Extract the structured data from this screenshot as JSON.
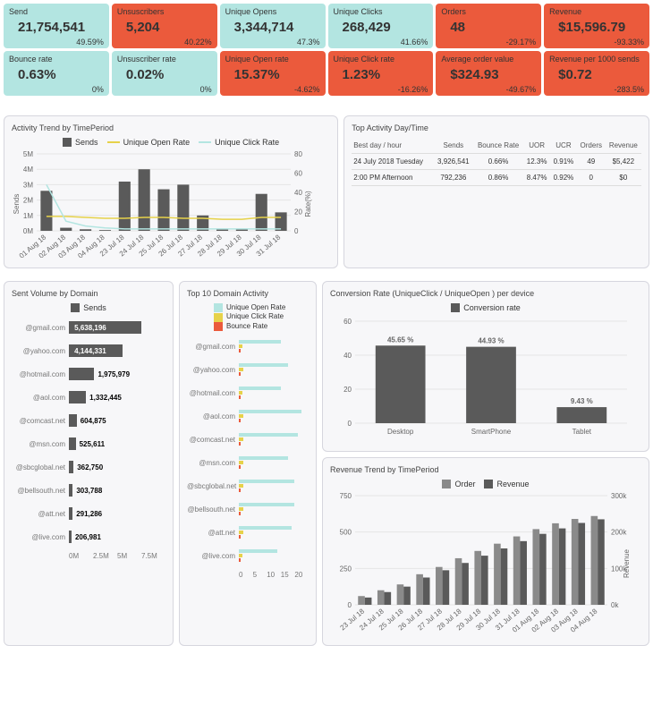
{
  "colors": {
    "teal": "#b3e5e1",
    "red": "#eb5a3c",
    "bar": "#5a5a5a",
    "bar2": "#8a8a8a",
    "open_rate": "#b3e5e1",
    "click_rate": "#e6d24a",
    "bounce_rate": "#eb5a3c",
    "grid": "#e5e5e5"
  },
  "kpis": [
    {
      "label": "Send",
      "value": "21,754,541",
      "delta": "49.59%",
      "tone": "teal"
    },
    {
      "label": "Unsuscribers",
      "value": "5,204",
      "delta": "40.22%",
      "tone": "red"
    },
    {
      "label": "Unique Opens",
      "value": "3,344,714",
      "delta": "47.3%",
      "tone": "teal"
    },
    {
      "label": "Unique Clicks",
      "value": "268,429",
      "delta": "41.66%",
      "tone": "teal"
    },
    {
      "label": "Orders",
      "value": "48",
      "delta": "-29.17%",
      "tone": "red"
    },
    {
      "label": "Revenue",
      "value": "$15,596.79",
      "delta": "-93.33%",
      "tone": "red"
    },
    {
      "label": "Bounce rate",
      "value": "0.63%",
      "delta": "0%",
      "tone": "teal"
    },
    {
      "label": "Unsuscriber rate",
      "value": "0.02%",
      "delta": "0%",
      "tone": "teal"
    },
    {
      "label": "Unique Open rate",
      "value": "15.37%",
      "delta": "-4.62%",
      "tone": "red"
    },
    {
      "label": "Unique Click rate",
      "value": "1.23%",
      "delta": "-16.26%",
      "tone": "red"
    },
    {
      "label": "Average order value",
      "value": "$324.93",
      "delta": "-49.67%",
      "tone": "red"
    },
    {
      "label": "Revenue per 1000 sends",
      "value": "$0.72",
      "delta": "-283.5%",
      "tone": "red"
    }
  ],
  "activity_trend": {
    "title": "Activity Trend by TimePeriod",
    "legend": {
      "sends": "Sends",
      "open": "Unique Open Rate",
      "click": "Unique Click Rate"
    },
    "y1_label": "Sends",
    "y2_label": "Rate(%)",
    "y1_ticks": [
      "0M",
      "1M",
      "2M",
      "3M",
      "4M",
      "5M"
    ],
    "y2_ticks": [
      "0",
      "20",
      "40",
      "60",
      "80"
    ],
    "categories": [
      "01 Aug 18",
      "02 Aug 18",
      "03 Aug 18",
      "04 Aug 18",
      "23 Jul 18",
      "24 Jul 18",
      "25 Jul 18",
      "26 Jul 18",
      "27 Jul 18",
      "28 Jul 18",
      "29 Jul 18",
      "30 Jul 18",
      "31 Jul 18"
    ],
    "sends": [
      2.6,
      0.2,
      0.1,
      0.05,
      3.2,
      4.0,
      2.7,
      3.0,
      1.0,
      0.1,
      0.1,
      2.4,
      1.2
    ],
    "open_rate": [
      15,
      15,
      14,
      13,
      13,
      14,
      14,
      13,
      13,
      12,
      12,
      14,
      14
    ],
    "click_rate": [
      48,
      10,
      5,
      3,
      2,
      2,
      2,
      2,
      2,
      2,
      2,
      2,
      2
    ]
  },
  "top_activity": {
    "title": "Top Activity Day/Time",
    "headers": [
      "Best day / hour",
      "Sends",
      "Bounce Rate",
      "UOR",
      "UCR",
      "Orders",
      "Revenue"
    ],
    "rows": [
      [
        "24 July 2018 Tuesday",
        "3,926,541",
        "0.66%",
        "12.3%",
        "0.91%",
        "49",
        "$5,422"
      ],
      [
        "2:00 PM Afternoon",
        "792,236",
        "0.86%",
        "8.47%",
        "0.92%",
        "0",
        "$0"
      ]
    ]
  },
  "sent_volume": {
    "title": "Sent Volume by Domain",
    "legend": "Sends",
    "x_ticks": [
      "0M",
      "2.5M",
      "5M",
      "7.5M"
    ],
    "max": 7500000,
    "rows": [
      {
        "domain": "@gmail.com",
        "value": 5638196,
        "label": "5,638,196"
      },
      {
        "domain": "@yahoo.com",
        "value": 4144331,
        "label": "4,144,331"
      },
      {
        "domain": "@hotmail.com",
        "value": 1975979,
        "label": "1,975,979"
      },
      {
        "domain": "@aol.com",
        "value": 1332445,
        "label": "1,332,445"
      },
      {
        "domain": "@comcast.net",
        "value": 604875,
        "label": "604,875"
      },
      {
        "domain": "@msn.com",
        "value": 525611,
        "label": "525,611"
      },
      {
        "domain": "@sbcglobal.net",
        "value": 362750,
        "label": "362,750"
      },
      {
        "domain": "@bellsouth.net",
        "value": 303788,
        "label": "303,788"
      },
      {
        "domain": "@att.net",
        "value": 291286,
        "label": "291,286"
      },
      {
        "domain": "@live.com",
        "value": 206981,
        "label": "206,981"
      }
    ]
  },
  "domain_activity": {
    "title": "Top 10 Domain Activity",
    "legend": {
      "open": "Unique Open Rate",
      "click": "Unique Click Rate",
      "bounce": "Bounce Rate"
    },
    "x_ticks": [
      "0",
      "5",
      "10",
      "15",
      "20"
    ],
    "max": 20,
    "rows": [
      {
        "domain": "@gmail.com",
        "open": 12,
        "click": 1.0,
        "bounce": 0.4
      },
      {
        "domain": "@yahoo.com",
        "open": 14,
        "click": 1.2,
        "bounce": 0.5
      },
      {
        "domain": "@hotmail.com",
        "open": 12,
        "click": 1.0,
        "bounce": 0.5
      },
      {
        "domain": "@aol.com",
        "open": 18,
        "click": 1.4,
        "bounce": 0.5
      },
      {
        "domain": "@comcast.net",
        "open": 17,
        "click": 1.3,
        "bounce": 0.5
      },
      {
        "domain": "@msn.com",
        "open": 14,
        "click": 1.2,
        "bounce": 0.5
      },
      {
        "domain": "@sbcglobal.net",
        "open": 16,
        "click": 1.3,
        "bounce": 0.5
      },
      {
        "domain": "@bellsouth.net",
        "open": 16,
        "click": 1.3,
        "bounce": 0.5
      },
      {
        "domain": "@att.net",
        "open": 15,
        "click": 1.2,
        "bounce": 0.5
      },
      {
        "domain": "@live.com",
        "open": 11,
        "click": 0.9,
        "bounce": 0.5
      }
    ]
  },
  "conversion": {
    "title": "Conversion Rate (UniqueClick / UniqueOpen )  per device",
    "legend": "Conversion rate",
    "y_ticks": [
      "0",
      "20",
      "40",
      "60"
    ],
    "ymax": 60,
    "rows": [
      {
        "device": "Desktop",
        "value": 45.65,
        "label": "45.65 %"
      },
      {
        "device": "SmartPhone",
        "value": 44.93,
        "label": "44.93 %"
      },
      {
        "device": "Tablet",
        "value": 9.43,
        "label": "9.43 %"
      }
    ]
  },
  "revenue_trend": {
    "title": "Revenue Trend by TimePeriod",
    "legend": {
      "order": "Order",
      "revenue": "Revenue"
    },
    "y1_ticks": [
      "0",
      "250",
      "500",
      "750"
    ],
    "y1_max": 750,
    "y2_ticks": [
      "0k",
      "100k",
      "200k",
      "300k"
    ],
    "y2_max": 300,
    "y2_label": "Revenue",
    "categories": [
      "23 Jul 18",
      "24 Jul 18",
      "25 Jul 18",
      "26 Jul 18",
      "27 Jul 18",
      "28 Jul 18",
      "29 Jul 18",
      "30 Jul 18",
      "31 Jul 18",
      "01 Aug 18",
      "02 Aug 18",
      "03 Aug 18",
      "04 Aug 18"
    ],
    "order": [
      60,
      100,
      140,
      210,
      260,
      320,
      370,
      420,
      470,
      520,
      560,
      590,
      610
    ],
    "revenue": [
      20,
      35,
      50,
      75,
      95,
      115,
      135,
      155,
      175,
      195,
      210,
      225,
      235
    ]
  }
}
